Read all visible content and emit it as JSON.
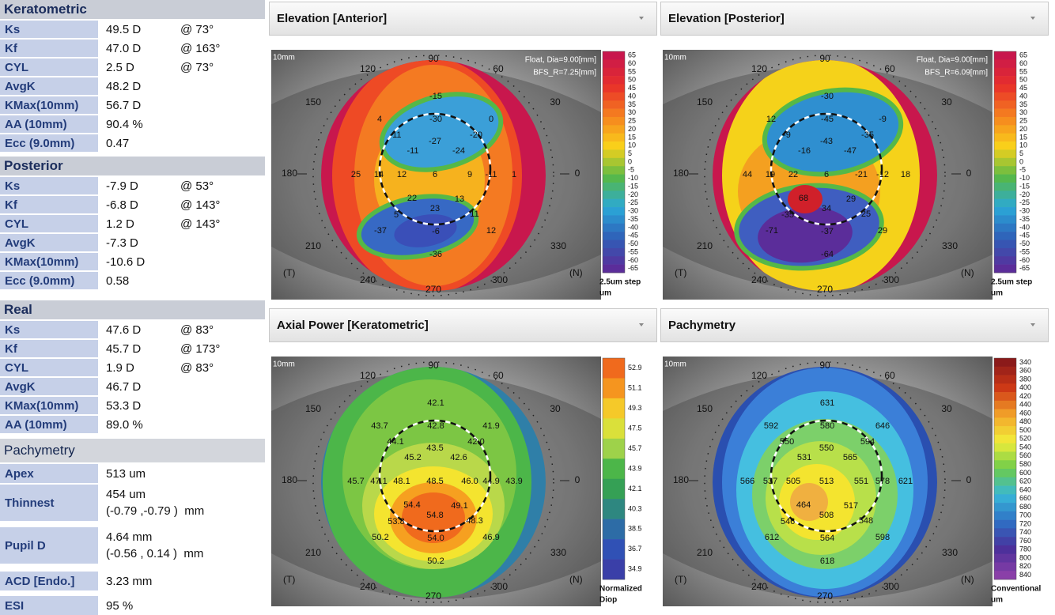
{
  "left_panel": {
    "sections": [
      {
        "title": "Keratometric",
        "rows": [
          {
            "label": "Ks",
            "cells": [
              "49.5 D",
              "@ 73°"
            ]
          },
          {
            "label": "Kf",
            "cells": [
              "47.0 D",
              "@ 163°"
            ]
          },
          {
            "label": "CYL",
            "cells": [
              "2.5 D",
              "@ 73°"
            ]
          },
          {
            "label": "AvgK",
            "cells": [
              "48.2 D"
            ]
          },
          {
            "label": "KMax(10mm)",
            "cells": [
              "56.7 D"
            ]
          },
          {
            "label": "AA (10mm)",
            "cells": [
              "90.4 %"
            ]
          },
          {
            "label": "Ecc (9.0mm)",
            "cells": [
              "0.47"
            ]
          }
        ]
      },
      {
        "title": "Posterior",
        "rows": [
          {
            "label": "Ks",
            "cells": [
              "-7.9 D",
              "@ 53°"
            ]
          },
          {
            "label": "Kf",
            "cells": [
              "-6.8 D",
              "@ 143°"
            ]
          },
          {
            "label": "CYL",
            "cells": [
              "1.2 D",
              "@ 143°"
            ]
          },
          {
            "label": "AvgK",
            "cells": [
              "-7.3 D"
            ]
          },
          {
            "label": "KMax(10mm)",
            "cells": [
              "-10.6 D"
            ]
          },
          {
            "label": "Ecc (9.0mm)",
            "cells": [
              "0.58"
            ]
          }
        ]
      },
      {
        "title": "Real",
        "rows": [
          {
            "label": "Ks",
            "cells": [
              "47.6 D",
              "@ 83°"
            ]
          },
          {
            "label": "Kf",
            "cells": [
              "45.7 D",
              "@ 173°"
            ]
          },
          {
            "label": "CYL",
            "cells": [
              "1.9 D",
              "@ 83°"
            ]
          },
          {
            "label": "AvgK",
            "cells": [
              "46.7 D"
            ]
          },
          {
            "label": "KMax(10mm)",
            "cells": [
              "53.3 D"
            ]
          },
          {
            "label": "AA (10mm)",
            "cells": [
              "89.0 %"
            ]
          }
        ]
      },
      {
        "title": "Pachymetry",
        "rows": [
          {
            "label": "Apex",
            "cells": [
              "513 um"
            ]
          },
          {
            "label": "Thinnest",
            "cells": [
              "454 um",
              "(-0.79 ,-0.79 )  mm"
            ]
          },
          {
            "label": "Pupil D",
            "cells": [
              "4.64 mm",
              "(-0.56 , 0.14 )  mm"
            ]
          },
          {
            "label": "ACD [Endo.]",
            "cells": [
              "3.23 mm"
            ]
          },
          {
            "label": "ESI",
            "cells": [
              "95 %"
            ]
          }
        ]
      }
    ]
  },
  "map_axes": {
    "corner": "10mm",
    "angles": [
      "90",
      "120",
      "60",
      "150",
      "30",
      "180",
      "0",
      "210",
      "330",
      "240",
      "300",
      "270"
    ],
    "left": "(T)",
    "right": "(N)"
  },
  "maps": [
    {
      "title": "Elevation [Anterior]",
      "info": [
        "Float, Dia=9.00[mm]",
        "BFS_R=7.25[mm]"
      ],
      "scale_labels": [
        "65",
        "60",
        "55",
        "50",
        "45",
        "40",
        "35",
        "30",
        "25",
        "20",
        "15",
        "10",
        "5",
        "0",
        "-5",
        "-10",
        "-15",
        "-20",
        "-25",
        "-30",
        "-35",
        "-40",
        "-45",
        "-50",
        "-55",
        "-60",
        "-65"
      ],
      "scale_palette": [
        "#c8174d",
        "#e8302a",
        "#f5821f",
        "#f9d21a",
        "#57b947",
        "#2aa8d8",
        "#2f5fb8",
        "#5b2d9a"
      ],
      "scale_units": [
        "2.5um step",
        "um"
      ],
      "values": [
        "-15",
        "4",
        "-30",
        "0",
        "-11",
        "-27",
        "-20",
        "-11",
        "-24",
        "25",
        "14",
        "12",
        "6",
        "9",
        "-11",
        "1",
        "22",
        "13",
        "23",
        "5",
        "11",
        "-37",
        "-6",
        "12",
        "-36"
      ]
    },
    {
      "title": "Elevation [Posterior]",
      "info": [
        "Float, Dia=9.00[mm]",
        "BFS_R=6.09[mm]"
      ],
      "scale_labels": [
        "65",
        "60",
        "55",
        "50",
        "45",
        "40",
        "35",
        "30",
        "25",
        "20",
        "15",
        "10",
        "5",
        "0",
        "-5",
        "-10",
        "-15",
        "-20",
        "-25",
        "-30",
        "-35",
        "-40",
        "-45",
        "-50",
        "-55",
        "-60",
        "-65"
      ],
      "scale_palette": [
        "#c8174d",
        "#e8302a",
        "#f5821f",
        "#f9d21a",
        "#57b947",
        "#2aa8d8",
        "#2f5fb8",
        "#5b2d9a"
      ],
      "scale_units": [
        "2.5um step",
        "um"
      ],
      "values": [
        "-30",
        "12",
        "-45",
        "-9",
        "-9",
        "-43",
        "-35",
        "-16",
        "-47",
        "44",
        "19",
        "22",
        "6",
        "-21",
        "-12",
        "18",
        "68",
        "29",
        "34",
        "-35",
        "25",
        "-71",
        "-37",
        "29",
        "-64"
      ]
    },
    {
      "title": "Axial Power [Keratometric]",
      "scale_labels": [
        "52.9",
        "51.1",
        "49.3",
        "47.5",
        "45.7",
        "43.9",
        "42.1",
        "40.3",
        "38.5",
        "36.7",
        "34.9"
      ],
      "scale_palette": [
        "#f06a1d",
        "#f6a020",
        "#f4e42f",
        "#b3d94a",
        "#4cb649",
        "#2f9a58",
        "#2d7a9a",
        "#2e56b8",
        "#3a3fa8"
      ],
      "scale_units": [
        "Normalized",
        "Diop"
      ],
      "values": [
        "42.1",
        "43.7",
        "42.8",
        "41.9",
        "44.1",
        "43.5",
        "42.0",
        "45.2",
        "42.6",
        "45.7",
        "47.1",
        "48.1",
        "48.5",
        "46.0",
        "44.9",
        "43.9",
        "54.4",
        "49.1",
        "54.8",
        "53.8",
        "48.3",
        "50.2",
        "54.0",
        "46.9",
        "50.2"
      ]
    },
    {
      "title": "Pachymetry",
      "scale_labels": [
        "340",
        "360",
        "380",
        "400",
        "420",
        "440",
        "460",
        "480",
        "500",
        "520",
        "540",
        "560",
        "580",
        "600",
        "620",
        "640",
        "660",
        "680",
        "700",
        "720",
        "740",
        "760",
        "780",
        "800",
        "820",
        "840"
      ],
      "scale_palette": [
        "#8b1a1a",
        "#d03a16",
        "#f3a52a",
        "#f2ee3a",
        "#6ccb4b",
        "#38b7d8",
        "#2f6fc4",
        "#4a2f9a",
        "#8a3fa8"
      ],
      "scale_units": [
        "Conventional",
        "um"
      ],
      "values": [
        "631",
        "592",
        "580",
        "646",
        "550",
        "550",
        "594",
        "531",
        "565",
        "566",
        "537",
        "505",
        "513",
        "551",
        "578",
        "621",
        "464",
        "517",
        "508",
        "546",
        "548",
        "612",
        "564",
        "598",
        "618"
      ]
    }
  ]
}
